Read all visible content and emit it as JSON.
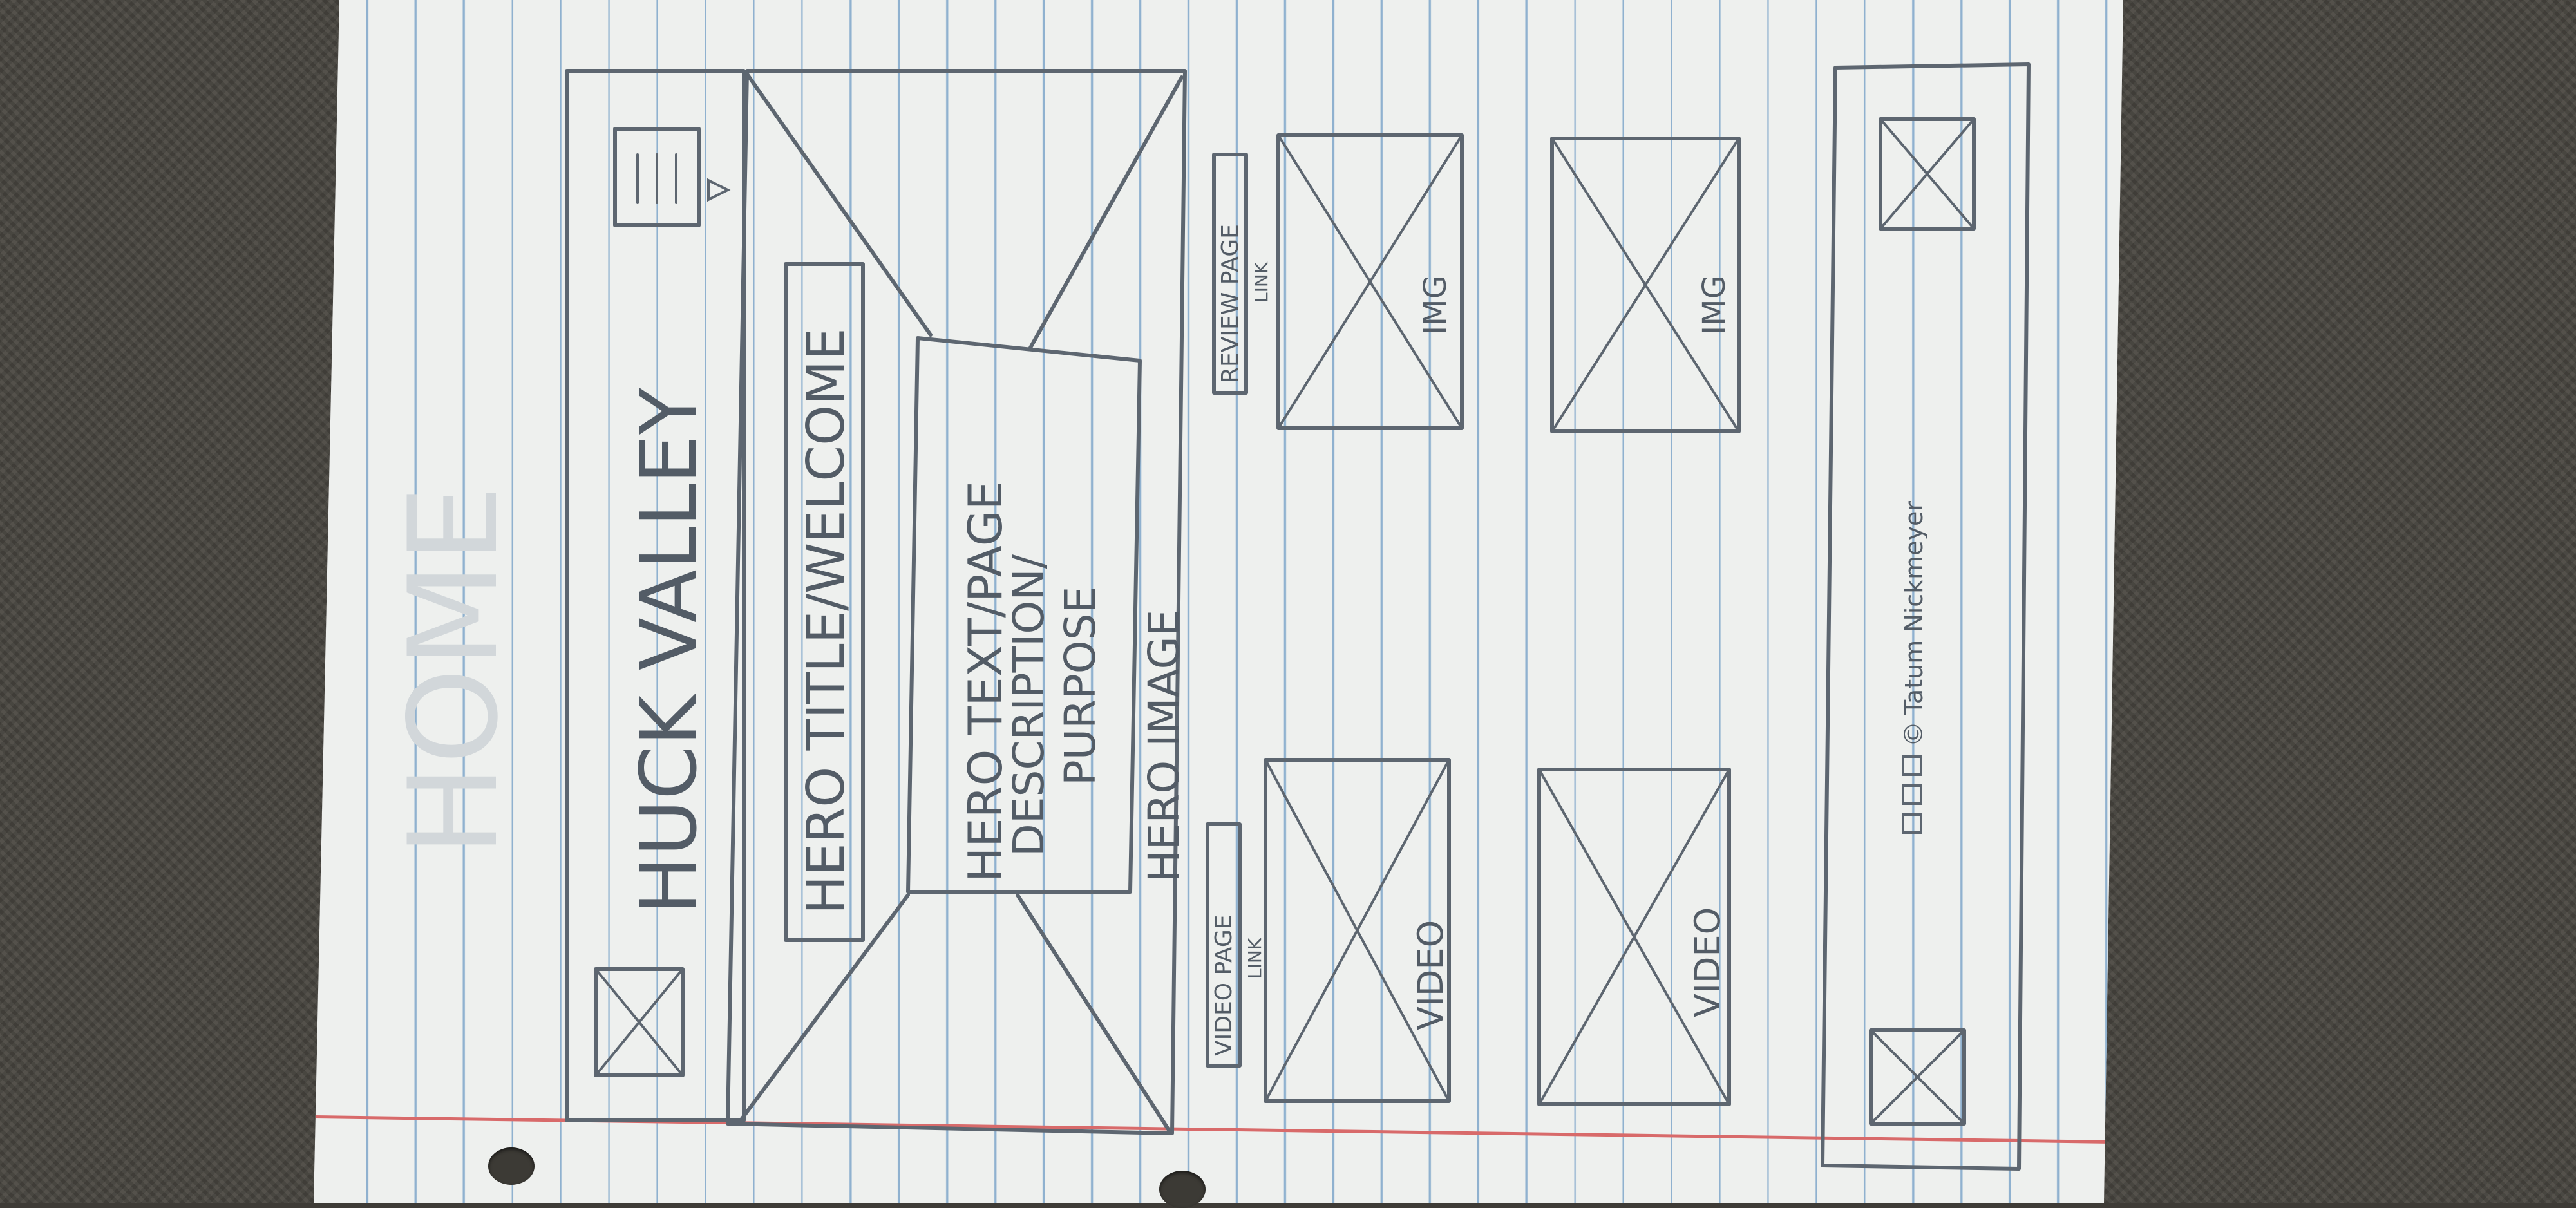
{
  "page_heading": "HOME",
  "nav": {
    "site_name": "HUCK VALLEY",
    "menu_icon": "hamburger-menu-icon",
    "dropdown_icon": "triangle-down-icon",
    "logo_icon": "image-placeholder-icon"
  },
  "hero": {
    "title": "HERO TITLE/WELCOME",
    "text_line1": "HERO TEXT/PAGE",
    "text_line2": "DESCRIPTION/",
    "text_line3": "PURPOSE",
    "image_label": "HERO IMAGE"
  },
  "links": {
    "review": "REVIEW PAGE",
    "review_sub": "LINK",
    "video": "VIDEO PAGE",
    "video_sub": "LINK"
  },
  "media": {
    "img_label": "IMG",
    "video_label": "VIDEO"
  },
  "footer": {
    "social_icons": [
      "social-square-icon",
      "social-square-icon",
      "social-square-icon",
      "copyright-icon"
    ],
    "copyright_symbol": "©",
    "credit": "Tatum Nickmeyer",
    "image_icon": "image-placeholder-icon"
  },
  "colors": {
    "paper": "#eef0ee",
    "rule_line": "#8fb1cf",
    "margin_line": "#d86a6a",
    "pencil": "#5d6670",
    "fabric": "#47443e"
  }
}
